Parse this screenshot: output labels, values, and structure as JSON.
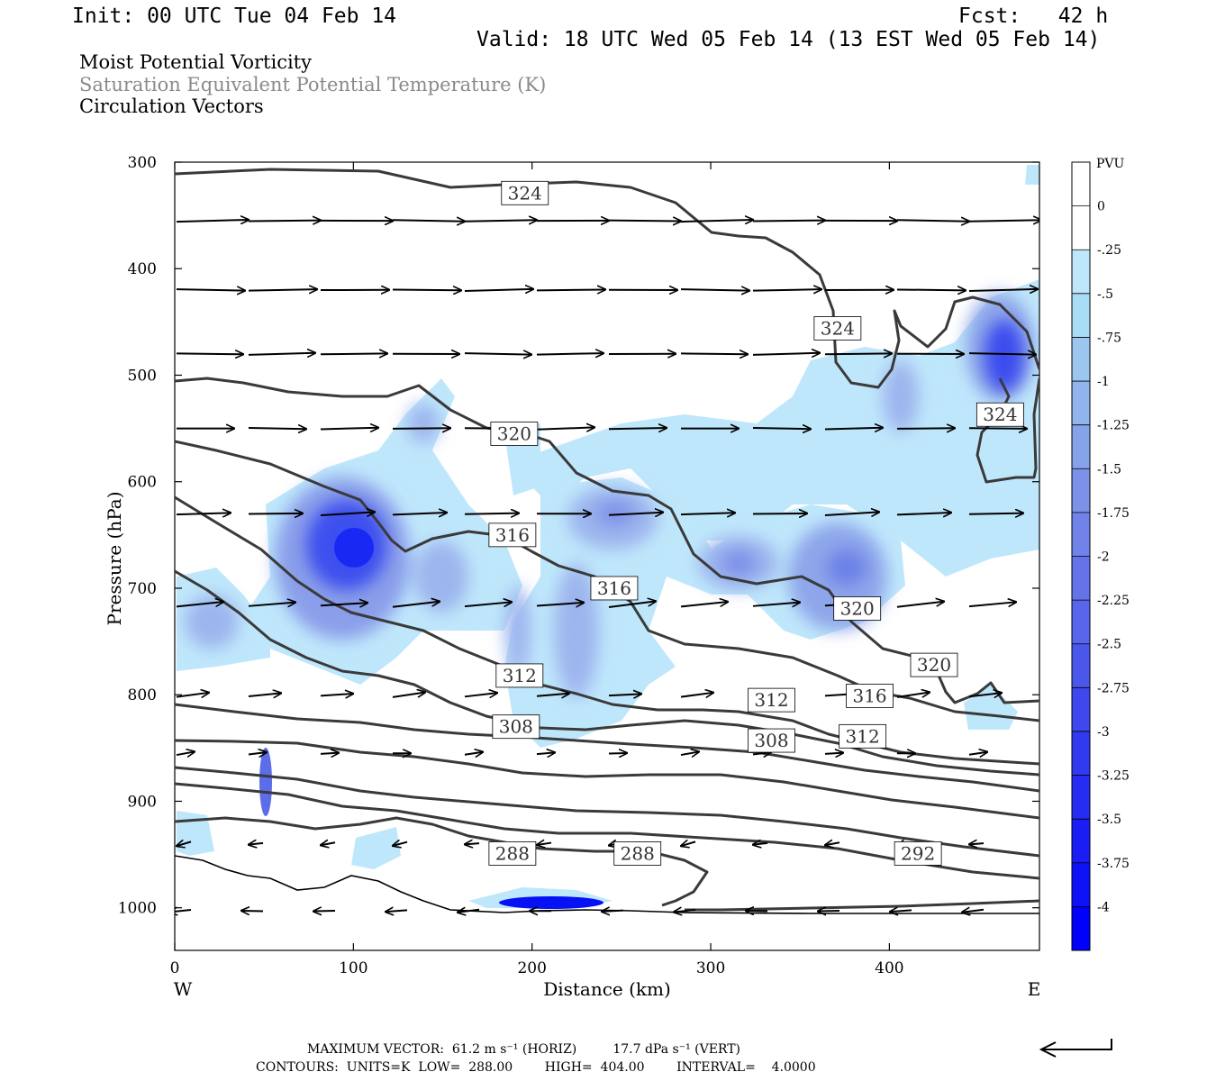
{
  "header": {
    "init": "Init: 00 UTC Tue 04 Feb 14",
    "fcst": "Fcst:   42 h",
    "valid": "Valid: 18 UTC Wed 05 Feb 14 (13 EST Wed 05 Feb 14)"
  },
  "titles": {
    "line1": "Moist Potential Vorticity",
    "line2": "Saturation Equivalent Potential Temperature (K)",
    "line3": "Circulation Vectors"
  },
  "colors": {
    "title2": "#8a8a8a",
    "contour": "#3a3a3a",
    "vector": "#000000",
    "surface": "#000000"
  },
  "chart_data": {
    "type": "heatmap",
    "xlabel": "Distance (km)",
    "ylabel": "Pressure (hPa)",
    "x_ticks": [
      "0",
      "100",
      "200",
      "300",
      "400"
    ],
    "y_ticks": [
      "300",
      "400",
      "500",
      "600",
      "700",
      "800",
      "900",
      "1000"
    ],
    "xlim": [
      0,
      484
    ],
    "ylim": [
      1040,
      300
    ],
    "y_scale": "linear",
    "x_end_labels": {
      "left": "W",
      "right": "E"
    },
    "colorbar": {
      "title": "PVU",
      "ticks": [
        "0",
        "-.25",
        "-.5",
        "-.75",
        "-1",
        "-1.25",
        "-1.5",
        "-1.75",
        "-2",
        "-2.25",
        "-2.5",
        "-2.75",
        "-3",
        "-3.25",
        "-3.5",
        "-3.75",
        "-4"
      ],
      "colors": [
        "#ffffff",
        "#ffffff",
        "#bfe7fb",
        "#a9dcf5",
        "#9dc6ef",
        "#91b4ec",
        "#86a3ea",
        "#7b92e8",
        "#7183e8",
        "#6474e8",
        "#5766ea",
        "#4b57ea",
        "#3e48ec",
        "#323aef",
        "#262cf1",
        "#1a1ef4",
        "#0e10f7",
        "#0000fb"
      ]
    },
    "theta_es_contours_K": [
      288,
      292,
      296,
      300,
      304,
      308,
      312,
      316,
      320,
      324
    ],
    "contour_labels": [
      {
        "value": "324",
        "x": 196,
        "p": 329
      },
      {
        "value": "324",
        "x": 371,
        "p": 456
      },
      {
        "value": "324",
        "x": 462,
        "p": 537
      },
      {
        "value": "320",
        "x": 190,
        "p": 555
      },
      {
        "value": "320",
        "x": 382,
        "p": 719
      },
      {
        "value": "320",
        "x": 425,
        "p": 772
      },
      {
        "value": "316",
        "x": 189,
        "p": 650
      },
      {
        "value": "316",
        "x": 246,
        "p": 700
      },
      {
        "value": "316",
        "x": 389,
        "p": 801
      },
      {
        "value": "312",
        "x": 193,
        "p": 782
      },
      {
        "value": "312",
        "x": 334,
        "p": 805
      },
      {
        "value": "312",
        "x": 385,
        "p": 839
      },
      {
        "value": "308",
        "x": 191,
        "p": 830
      },
      {
        "value": "308",
        "x": 334,
        "p": 843
      },
      {
        "value": "288",
        "x": 189,
        "p": 949
      },
      {
        "value": "288",
        "x": 259,
        "p": 949
      },
      {
        "value": "292",
        "x": 416,
        "p": 949
      }
    ],
    "pv_maxima": [
      {
        "x": 97,
        "p": 660,
        "pvu": -4.0
      },
      {
        "x": 462,
        "p": 480,
        "pvu": -3.5
      },
      {
        "x": 220,
        "p": 1000,
        "pvu": -4.0
      },
      {
        "x": 372,
        "p": 680,
        "pvu": -2.75
      },
      {
        "x": 48,
        "p": 880,
        "pvu": -2.5
      },
      {
        "x": 315,
        "p": 675,
        "pvu": -2.25
      },
      {
        "x": 232,
        "p": 650,
        "pvu": -2.0
      },
      {
        "x": 22,
        "p": 700,
        "pvu": -2.0
      },
      {
        "x": 188,
        "p": 710,
        "pvu": -2.0
      }
    ],
    "vector_rows": [
      {
        "p": 355,
        "u": 40,
        "w": 0.05
      },
      {
        "p": 420,
        "u": 38,
        "w": 0.05
      },
      {
        "p": 480,
        "u": 37,
        "w": 0.05
      },
      {
        "p": 550,
        "u": 32,
        "w": 0.1
      },
      {
        "p": 630,
        "u": 30,
        "w": 0.3
      },
      {
        "p": 715,
        "u": 26,
        "w": 0.8
      },
      {
        "p": 800,
        "u": 18,
        "w": 0.6
      },
      {
        "p": 855,
        "u": 10,
        "w": 0.3
      },
      {
        "p": 940,
        "u": -8,
        "w": -0.5
      },
      {
        "p": 1003,
        "u": -12,
        "w": -0.2
      }
    ],
    "surface_line": "surface pressure trace (heavy black line near 950-1005 hPa)"
  },
  "footer": {
    "line1": "MAXIMUM VECTOR:  61.2 m s⁻¹ (HORIZ)         17.7 dPa s⁻¹ (VERT)",
    "line2": "CONTOURS:  UNITS=K  LOW=  288.00        HIGH=  404.00        INTERVAL=    4.0000"
  }
}
